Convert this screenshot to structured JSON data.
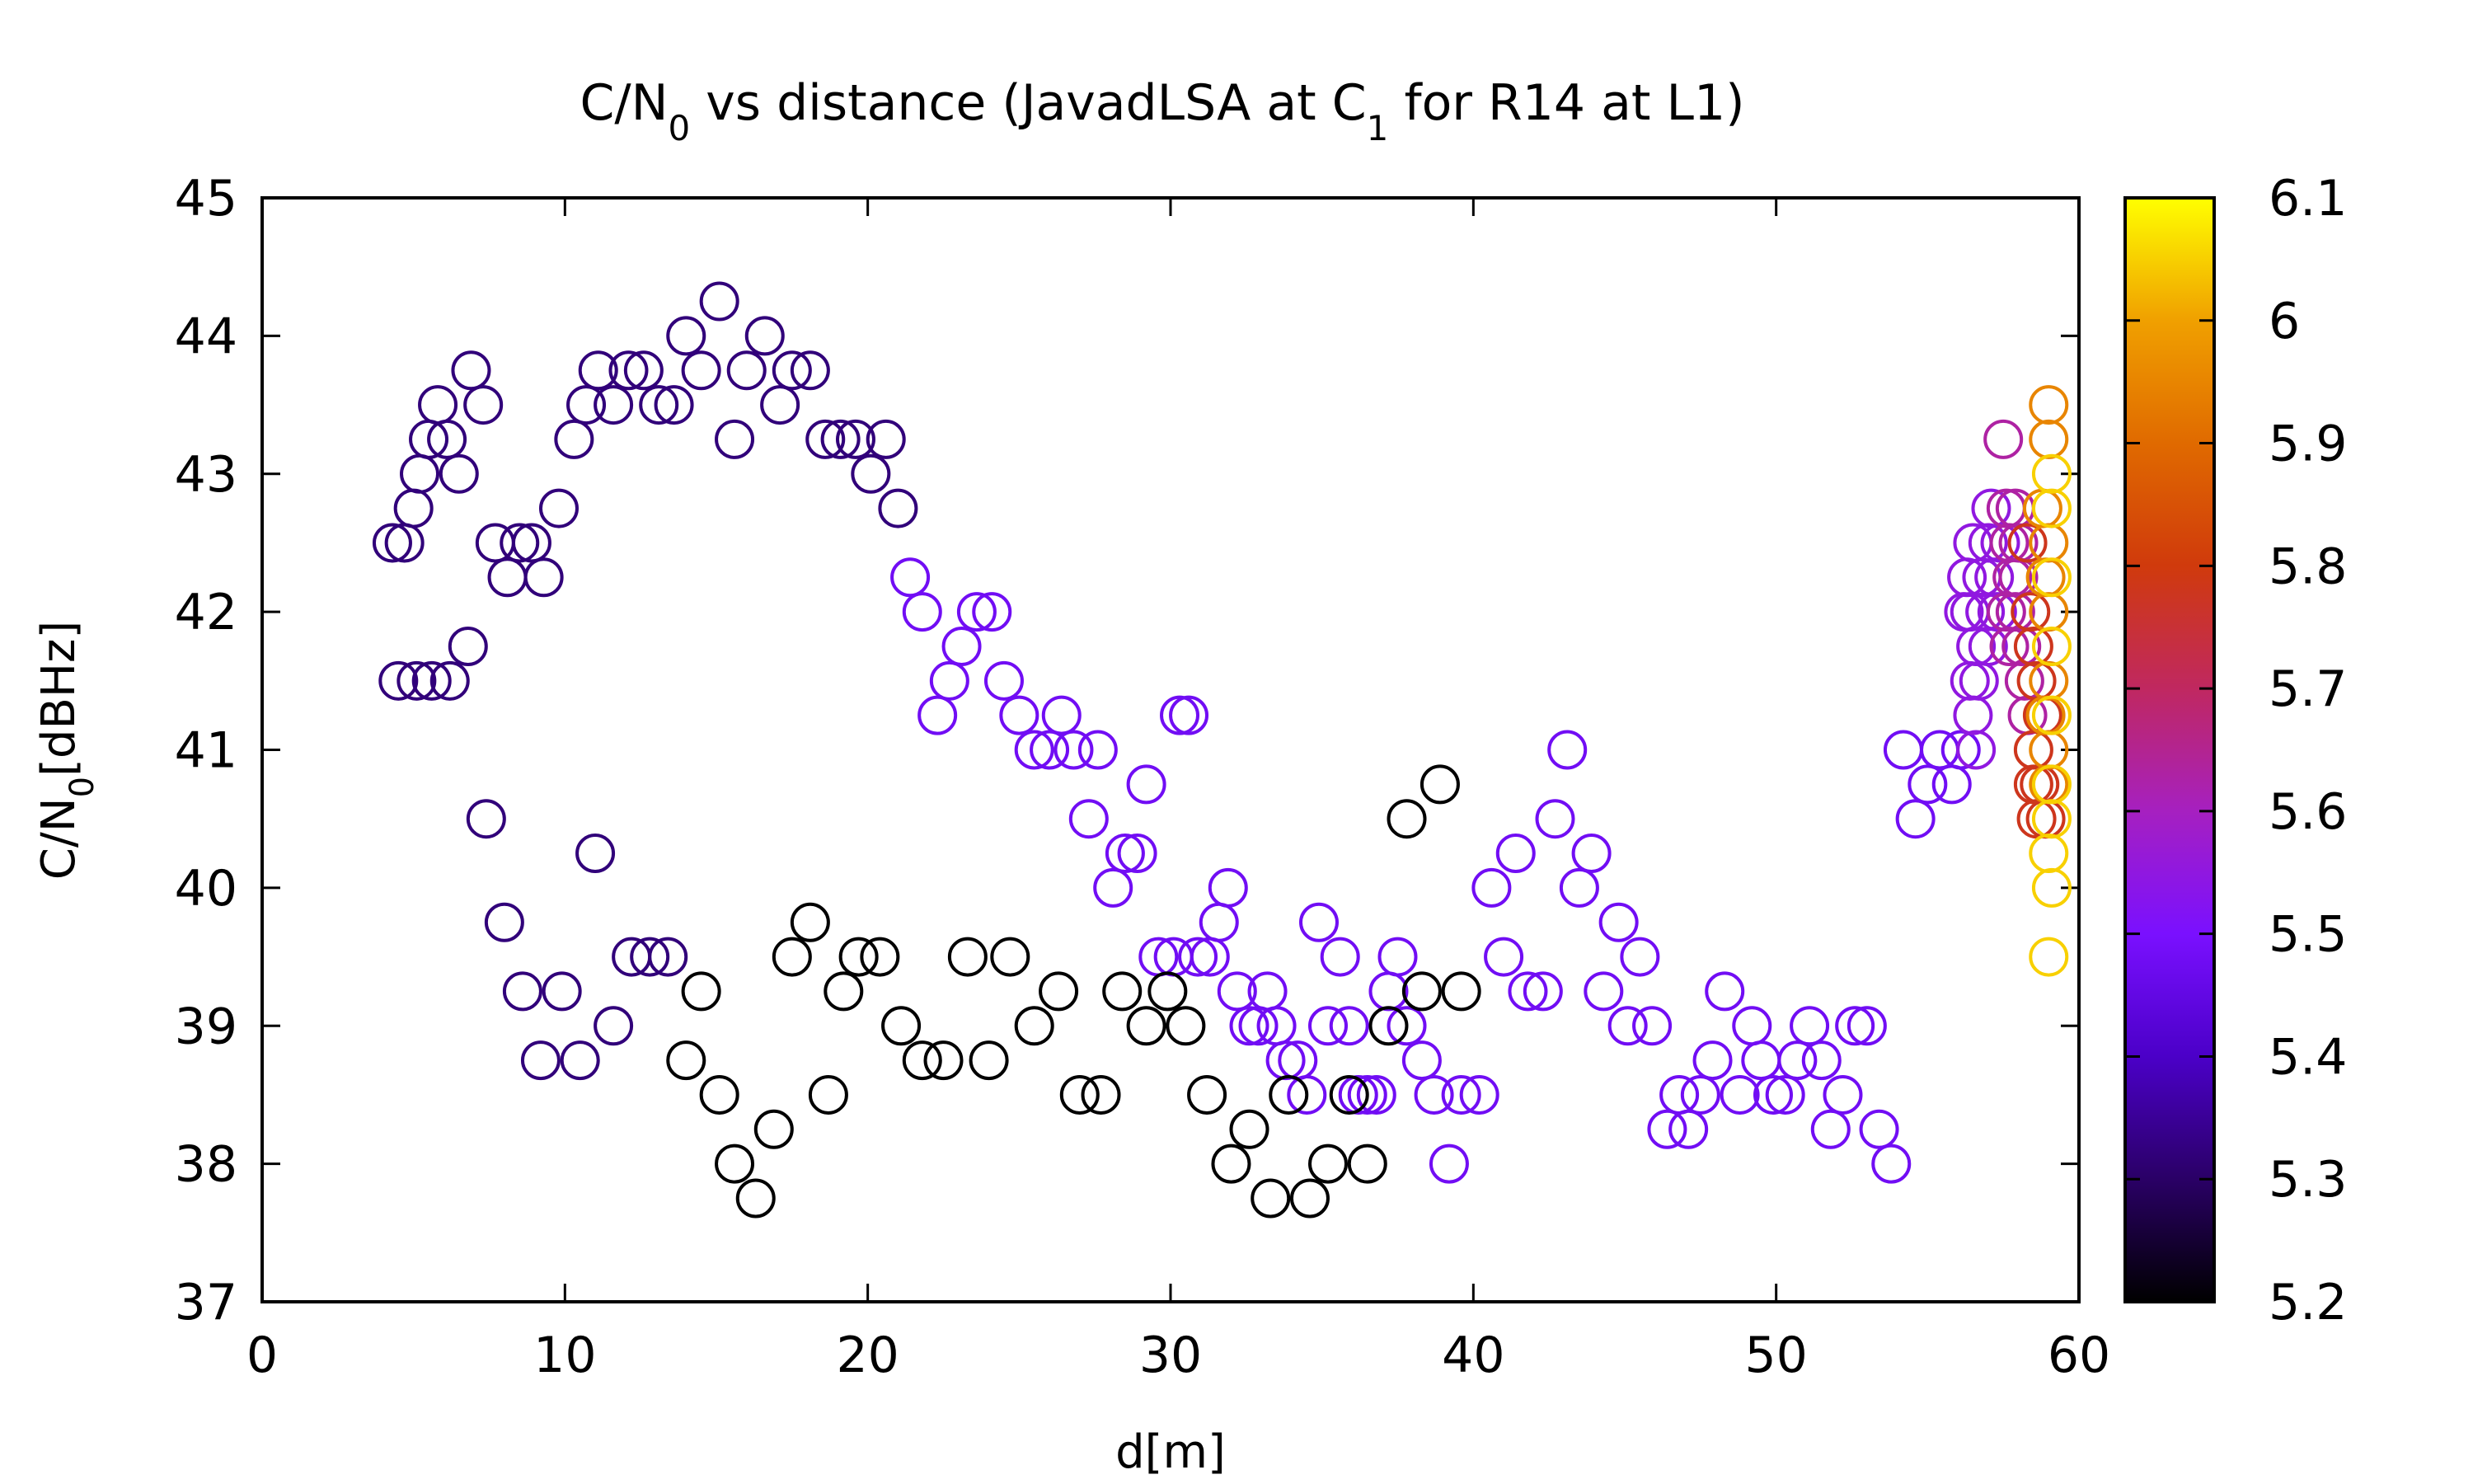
{
  "chart_data": {
    "type": "scatter",
    "title_main": "C/N",
    "title_sub0": "0",
    "title_mid": " vs distance (JavadLSA at C",
    "title_sub1": "1",
    "title_end": " for R14 at L1)",
    "xlabel": "d[m]",
    "ylabel_main": "C/N",
    "ylabel_sub": "0",
    "ylabel_end": "[dBHz]",
    "xlim": [
      0,
      60
    ],
    "ylim": [
      37,
      45
    ],
    "xticks": [
      "0",
      "10",
      "20",
      "30",
      "40",
      "50",
      "60"
    ],
    "yticks": [
      "37",
      "38",
      "39",
      "40",
      "41",
      "42",
      "43",
      "44",
      "45"
    ],
    "colorbar": {
      "range": [
        5.2,
        6.1
      ],
      "ticks": [
        "5.2",
        "5.3",
        "5.4",
        "5.5",
        "5.6",
        "5.7",
        "5.8",
        "5.9",
        "6",
        "6.1"
      ],
      "colors": [
        "#000000",
        "#2a0066",
        "#4b00c8",
        "#7a10ff",
        "#a620c0",
        "#c02860",
        "#d03a0c",
        "#e06a00",
        "#f0a000",
        "#ffff00"
      ]
    },
    "series": [
      {
        "group": "dark purple",
        "c": 5.32,
        "points": [
          [
            4.3,
            42.5
          ],
          [
            4.7,
            42.5
          ],
          [
            5.0,
            42.75
          ],
          [
            5.2,
            43.0
          ],
          [
            5.5,
            43.25
          ],
          [
            5.8,
            43.5
          ],
          [
            6.1,
            43.25
          ],
          [
            6.5,
            43.0
          ],
          [
            6.9,
            43.75
          ],
          [
            7.3,
            43.5
          ],
          [
            7.7,
            42.5
          ],
          [
            8.1,
            42.25
          ],
          [
            8.5,
            42.5
          ],
          [
            8.9,
            42.5
          ],
          [
            9.3,
            42.25
          ],
          [
            9.8,
            42.75
          ],
          [
            10.3,
            43.25
          ],
          [
            10.7,
            43.5
          ],
          [
            11.1,
            43.75
          ],
          [
            11.6,
            43.5
          ],
          [
            12.1,
            43.75
          ],
          [
            12.6,
            43.75
          ],
          [
            13.1,
            43.5
          ],
          [
            13.6,
            43.5
          ],
          [
            14.0,
            44.0
          ],
          [
            14.5,
            43.75
          ],
          [
            15.1,
            44.25
          ],
          [
            15.6,
            43.25
          ],
          [
            16.0,
            43.75
          ],
          [
            16.6,
            44.0
          ],
          [
            17.1,
            43.5
          ],
          [
            17.5,
            43.75
          ],
          [
            18.1,
            43.75
          ],
          [
            18.6,
            43.25
          ],
          [
            19.1,
            43.25
          ],
          [
            19.6,
            43.25
          ],
          [
            20.1,
            43.0
          ],
          [
            20.6,
            43.25
          ],
          [
            21.0,
            42.75
          ],
          [
            4.5,
            41.5
          ],
          [
            5.1,
            41.5
          ],
          [
            5.6,
            41.5
          ],
          [
            6.2,
            41.5
          ],
          [
            6.8,
            41.75
          ],
          [
            7.4,
            40.5
          ],
          [
            8.0,
            39.75
          ],
          [
            8.6,
            39.25
          ],
          [
            9.2,
            38.75
          ],
          [
            9.9,
            39.25
          ],
          [
            10.5,
            38.75
          ],
          [
            11.0,
            40.25
          ],
          [
            11.6,
            39.0
          ],
          [
            12.2,
            39.5
          ],
          [
            12.8,
            39.5
          ],
          [
            13.4,
            39.5
          ]
        ]
      },
      {
        "group": "violet",
        "c": 5.48,
        "points": [
          [
            21.4,
            42.25
          ],
          [
            21.8,
            42.0
          ],
          [
            22.3,
            41.25
          ],
          [
            22.7,
            41.5
          ],
          [
            23.1,
            41.75
          ],
          [
            23.6,
            42.0
          ],
          [
            24.1,
            42.0
          ],
          [
            24.5,
            41.5
          ],
          [
            25.0,
            41.25
          ],
          [
            25.5,
            41.0
          ],
          [
            26.0,
            41.0
          ],
          [
            26.4,
            41.25
          ],
          [
            26.8,
            41.0
          ],
          [
            27.3,
            40.5
          ],
          [
            27.6,
            41.0
          ],
          [
            28.1,
            40.0
          ],
          [
            28.5,
            40.25
          ],
          [
            28.9,
            40.25
          ],
          [
            29.2,
            40.75
          ],
          [
            29.6,
            39.5
          ],
          [
            30.1,
            39.5
          ],
          [
            30.3,
            41.25
          ],
          [
            30.6,
            41.25
          ],
          [
            30.9,
            39.5
          ],
          [
            31.3,
            39.5
          ],
          [
            31.6,
            39.75
          ],
          [
            31.9,
            40.0
          ],
          [
            32.2,
            39.25
          ],
          [
            32.6,
            39.0
          ],
          [
            32.9,
            39.0
          ],
          [
            33.2,
            39.25
          ],
          [
            33.5,
            39.0
          ],
          [
            33.8,
            38.75
          ],
          [
            34.2,
            38.75
          ],
          [
            34.5,
            38.5
          ],
          [
            34.9,
            39.75
          ],
          [
            35.2,
            39.0
          ],
          [
            35.6,
            39.5
          ],
          [
            35.9,
            39.0
          ],
          [
            36.2,
            38.5
          ],
          [
            36.5,
            38.5
          ],
          [
            36.8,
            38.5
          ],
          [
            37.2,
            39.25
          ],
          [
            37.5,
            39.5
          ],
          [
            37.8,
            39.0
          ],
          [
            38.3,
            38.75
          ],
          [
            38.7,
            38.5
          ],
          [
            39.2,
            38.0
          ],
          [
            39.6,
            38.5
          ],
          [
            40.2,
            38.5
          ],
          [
            40.6,
            40.0
          ],
          [
            41.0,
            39.5
          ],
          [
            41.4,
            40.25
          ],
          [
            41.8,
            39.25
          ],
          [
            42.3,
            39.25
          ],
          [
            42.7,
            40.5
          ],
          [
            43.1,
            41.0
          ],
          [
            43.5,
            40.0
          ],
          [
            43.9,
            40.25
          ],
          [
            44.3,
            39.25
          ],
          [
            44.8,
            39.75
          ],
          [
            45.1,
            39.0
          ],
          [
            45.5,
            39.5
          ],
          [
            45.9,
            39.0
          ],
          [
            46.4,
            38.25
          ],
          [
            46.8,
            38.5
          ],
          [
            47.1,
            38.25
          ],
          [
            47.5,
            38.5
          ],
          [
            47.9,
            38.75
          ],
          [
            48.3,
            39.25
          ],
          [
            48.8,
            38.5
          ],
          [
            49.2,
            39.0
          ],
          [
            49.5,
            38.75
          ],
          [
            49.9,
            38.5
          ],
          [
            50.3,
            38.5
          ],
          [
            50.7,
            38.75
          ],
          [
            51.1,
            39.0
          ],
          [
            51.5,
            38.75
          ],
          [
            51.8,
            38.25
          ],
          [
            52.2,
            38.5
          ],
          [
            52.6,
            39.0
          ],
          [
            53.0,
            39.0
          ],
          [
            53.4,
            38.25
          ],
          [
            53.8,
            38.0
          ],
          [
            54.2,
            41.0
          ],
          [
            54.6,
            40.5
          ],
          [
            55.0,
            40.75
          ],
          [
            55.4,
            41.0
          ],
          [
            55.8,
            40.75
          ],
          [
            56.1,
            41.0
          ]
        ]
      },
      {
        "group": "black",
        "c": 5.2,
        "points": [
          [
            14.0,
            38.75
          ],
          [
            14.5,
            39.25
          ],
          [
            15.1,
            38.5
          ],
          [
            15.6,
            38.0
          ],
          [
            16.3,
            37.75
          ],
          [
            16.9,
            38.25
          ],
          [
            17.5,
            39.5
          ],
          [
            18.1,
            39.75
          ],
          [
            18.7,
            38.5
          ],
          [
            19.2,
            39.25
          ],
          [
            19.7,
            39.5
          ],
          [
            20.4,
            39.5
          ],
          [
            21.1,
            39.0
          ],
          [
            21.8,
            38.75
          ],
          [
            22.5,
            38.75
          ],
          [
            23.3,
            39.5
          ],
          [
            24.0,
            38.75
          ],
          [
            24.7,
            39.5
          ],
          [
            25.5,
            39.0
          ],
          [
            26.3,
            39.25
          ],
          [
            27.0,
            38.5
          ],
          [
            27.7,
            38.5
          ],
          [
            28.4,
            39.25
          ],
          [
            29.2,
            39.0
          ],
          [
            29.9,
            39.25
          ],
          [
            30.5,
            39.0
          ],
          [
            31.2,
            38.5
          ],
          [
            32.0,
            38.0
          ],
          [
            32.6,
            38.25
          ],
          [
            33.3,
            37.75
          ],
          [
            33.9,
            38.5
          ],
          [
            34.6,
            37.75
          ],
          [
            35.2,
            38.0
          ],
          [
            35.9,
            38.5
          ],
          [
            36.5,
            38.0
          ],
          [
            37.2,
            39.0
          ],
          [
            37.8,
            40.5
          ],
          [
            38.3,
            39.25
          ],
          [
            38.9,
            40.75
          ],
          [
            39.6,
            39.25
          ]
        ]
      },
      {
        "group": "magenta",
        "c": 5.55,
        "points": [
          [
            56.3,
            42.25
          ],
          [
            56.4,
            42.0
          ],
          [
            56.5,
            42.5
          ],
          [
            56.6,
            41.75
          ],
          [
            56.7,
            41.5
          ],
          [
            56.8,
            42.25
          ],
          [
            56.9,
            42.0
          ],
          [
            57.0,
            42.5
          ],
          [
            57.1,
            42.75
          ],
          [
            57.2,
            42.25
          ],
          [
            57.3,
            42.0
          ],
          [
            56.5,
            41.25
          ],
          [
            56.6,
            41.0
          ],
          [
            56.2,
            42.0
          ],
          [
            56.4,
            41.5
          ],
          [
            57.0,
            41.75
          ],
          [
            57.4,
            42.5
          ]
        ]
      },
      {
        "group": "crimson",
        "c": 5.63,
        "points": [
          [
            57.5,
            43.25
          ],
          [
            57.6,
            42.75
          ],
          [
            57.7,
            42.5
          ],
          [
            57.8,
            42.25
          ],
          [
            57.9,
            42.0
          ],
          [
            57.7,
            41.75
          ],
          [
            57.9,
            42.75
          ],
          [
            58.0,
            42.5
          ],
          [
            58.1,
            41.75
          ],
          [
            58.2,
            41.5
          ],
          [
            58.0,
            42.25
          ],
          [
            58.3,
            41.25
          ],
          [
            57.6,
            42.0
          ]
        ]
      },
      {
        "group": "red-orange",
        "c": 5.78,
        "points": [
          [
            58.3,
            42.5
          ],
          [
            58.4,
            42.0
          ],
          [
            58.5,
            41.75
          ],
          [
            58.6,
            41.5
          ],
          [
            58.5,
            41.0
          ],
          [
            58.7,
            40.75
          ],
          [
            58.6,
            40.5
          ],
          [
            58.8,
            41.25
          ],
          [
            58.5,
            40.75
          ],
          [
            58.9,
            40.5
          ]
        ]
      },
      {
        "group": "orange",
        "c": 5.95,
        "points": [
          [
            58.8,
            42.75
          ],
          [
            58.9,
            42.25
          ],
          [
            59.0,
            43.5
          ],
          [
            59.0,
            43.25
          ],
          [
            59.0,
            42.5
          ],
          [
            59.0,
            42.0
          ],
          [
            59.0,
            41.5
          ],
          [
            59.0,
            41.0
          ],
          [
            59.0,
            40.75
          ],
          [
            58.9,
            41.25
          ]
        ]
      },
      {
        "group": "gold",
        "c": 6.05,
        "points": [
          [
            59.1,
            43.0
          ],
          [
            59.1,
            42.75
          ],
          [
            59.1,
            42.25
          ],
          [
            59.1,
            41.75
          ],
          [
            59.1,
            41.25
          ],
          [
            59.1,
            40.75
          ],
          [
            59.1,
            40.5
          ],
          [
            59.0,
            40.25
          ],
          [
            59.1,
            40.0
          ],
          [
            59.0,
            39.5
          ]
        ]
      }
    ]
  }
}
